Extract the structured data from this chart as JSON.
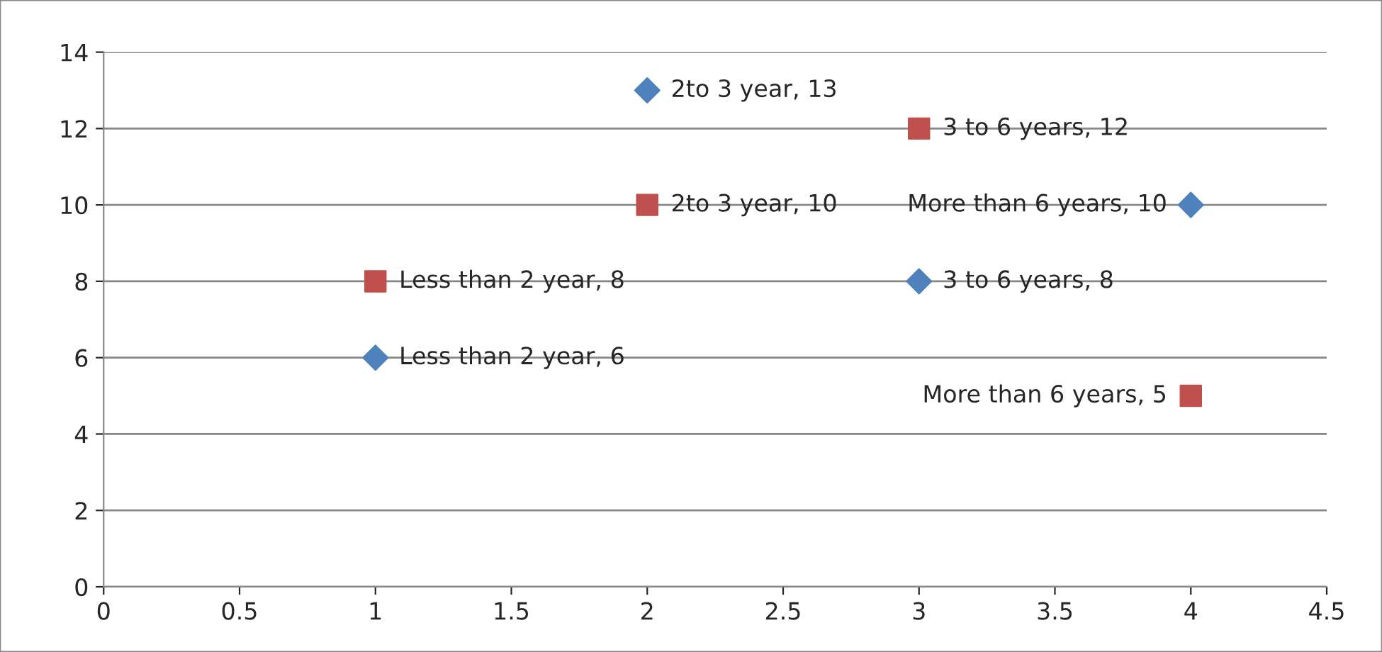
{
  "chart_data": {
    "type": "scatter",
    "series": [
      {
        "color": "#4f81bd",
        "marker": "diamond",
        "x": [
          1,
          2,
          3,
          4
        ],
        "values": [
          6,
          13,
          8,
          10
        ],
        "value_labels": [
          "Less than 2 year, 6",
          "2to 3 year, 13",
          "3 to 6 years, 8",
          "More than 6 years, 10"
        ]
      },
      {
        "color": "#c0504d",
        "marker": "square",
        "x": [
          1,
          2,
          3,
          4
        ],
        "values": [
          8,
          10,
          12,
          5
        ],
        "value_labels": [
          "Less than 2 year, 8",
          "2to 3 year, 10",
          "3 to 6 years, 12",
          "More than 6 years, 5"
        ]
      }
    ],
    "xlim": [
      0,
      4.5
    ],
    "xticks": [
      0,
      0.5,
      1,
      1.5,
      2,
      2.5,
      3,
      3.5,
      4,
      4.5
    ],
    "ylim": [
      0,
      14
    ],
    "yticks": [
      0,
      2,
      4,
      6,
      8,
      10,
      12,
      14
    ],
    "grid": "y",
    "legend": false
  }
}
